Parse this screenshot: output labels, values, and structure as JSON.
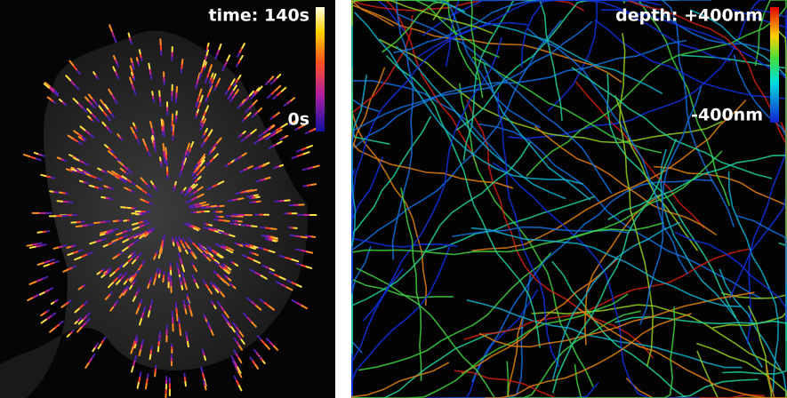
{
  "left_panel": {
    "label_top": "time: 140s",
    "label_bottom": "0s"
  },
  "right_panel": {
    "label_top": "depth: +400nm",
    "label_bottom": "-400nm"
  }
}
